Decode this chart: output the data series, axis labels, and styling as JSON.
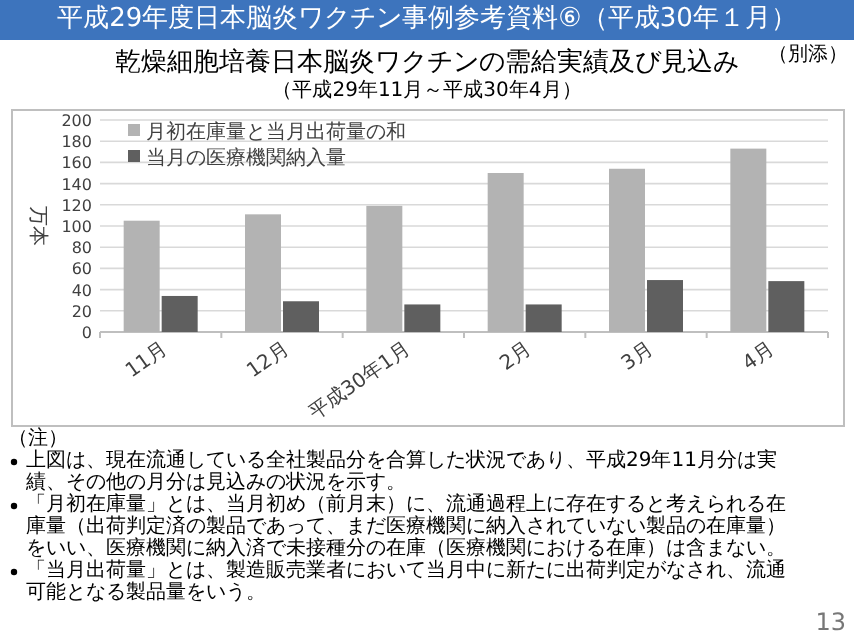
{
  "chart_data": {
    "type": "bar",
    "title": "平成29年度日本脳炎ワクチン事例参考資料⑥（平成30年１月）",
    "subtitle": "乾燥細胞培養日本脳炎ワクチンの需給実績及び見込み",
    "ylabel": "万本",
    "categories": [
      "11月",
      "12月",
      "平成30年1月",
      "2月",
      "3月",
      "4月"
    ],
    "series": [
      {
        "name": "月初在庫量と当月出荷量の和",
        "color": "#b3b3b3",
        "values": [
          105,
          111,
          119,
          150,
          154,
          173
        ]
      },
      {
        "name": "当月の医療機関納入量",
        "color": "#5f5f5f",
        "values": [
          34,
          29,
          26,
          26,
          49,
          48
        ]
      }
    ],
    "ylim": [
      0,
      200
    ],
    "yticks": [
      0,
      20,
      40,
      60,
      80,
      100,
      120,
      140,
      160,
      180,
      200
    ],
    "grid": "y",
    "legend": "top left",
    "annotations": [
      "（別添）",
      "（平成29年11月～平成30年4月）",
      "（注）",
      "上図は、現在流通している全社製品分を合算した状況であり、平成29年11月分は実績、その他の月分は見込みの状況を示す。",
      "「月初在庫量」とは、当月初め（前月末）に、流通過程上に存在すると考えられる在庫量（出荷判定済の製品であって、まだ医療機関に納入されていない製品の在庫量）をいい、医療機関に納入済で未接種分の在庫（医療機関における在庫）は含まない。",
      "「当月出荷量」とは、製造販売業者において当月中に新たに出荷判定がなされ、流通可能となる製品量をいう。",
      "13"
    ]
  }
}
